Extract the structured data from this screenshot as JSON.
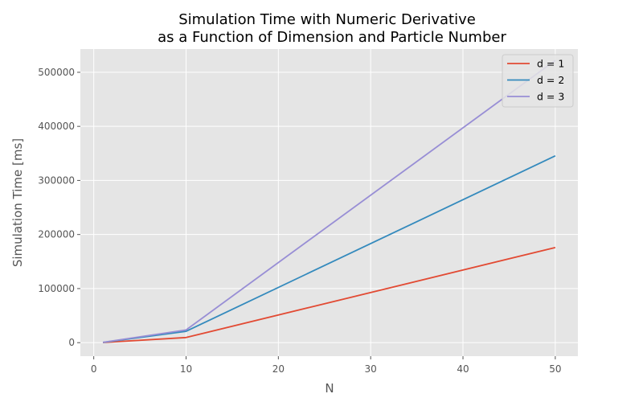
{
  "chart_data": {
    "type": "line",
    "title_line1": "Simulation Time with Numeric Derivative",
    "title_line2": "as a Function of Dimension and Particle Number",
    "xlabel": "N",
    "ylabel": "Simulation Time [ms]",
    "x": [
      1,
      10,
      50
    ],
    "xlim": [
      -1.45,
      52.45
    ],
    "ylim": [
      -25000,
      543000
    ],
    "xticks": [
      0,
      10,
      20,
      30,
      40,
      50
    ],
    "yticks": [
      0,
      100000,
      200000,
      300000,
      400000,
      500000
    ],
    "grid": true,
    "legend_position": "top-right",
    "series": [
      {
        "name": "d = 1",
        "color": "#E24A33",
        "values": [
          300,
          9500,
          176000
        ]
      },
      {
        "name": "d = 2",
        "color": "#348ABD",
        "values": [
          500,
          21000,
          345500
        ]
      },
      {
        "name": "d = 3",
        "color": "#988ED5",
        "values": [
          600,
          23500,
          522000
        ]
      }
    ],
    "style": {
      "plot_background": "#E5E5E5",
      "grid_color": "#FFFFFF"
    }
  }
}
